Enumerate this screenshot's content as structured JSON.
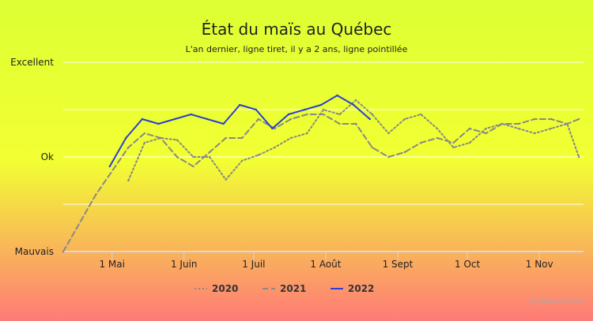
{
  "chart_data": {
    "type": "line",
    "title": "État du maïs au Québec",
    "subtitle": "L'an dernier, ligne tiret, il y a 2 ans, ligne pointillée",
    "y_ticks": [
      {
        "value": 0,
        "label": "Mauvais"
      },
      {
        "value": 1,
        "label": "Ok"
      },
      {
        "value": 2,
        "label": "Excellent"
      }
    ],
    "ylim": [
      0,
      2
    ],
    "x_range": [
      "2021-04-10",
      "2021-11-20"
    ],
    "x_ticks": [
      {
        "date": "2021-05-01",
        "label": "1 Mai"
      },
      {
        "date": "2021-06-01",
        "label": "1 Juin"
      },
      {
        "date": "2021-07-01",
        "label": "1 Juil"
      },
      {
        "date": "2021-08-01",
        "label": "1 Août"
      },
      {
        "date": "2021-09-01",
        "label": "1 Sept"
      },
      {
        "date": "2021-10-01",
        "label": "1 Oct"
      },
      {
        "date": "2021-11-01",
        "label": "1 Nov"
      }
    ],
    "grid": true,
    "legend_position": "bottom-center",
    "series": [
      {
        "name": "2020",
        "style": "dotted",
        "color": "#888888",
        "points": [
          [
            "2021-05-08",
            0.75
          ],
          [
            "2021-05-15",
            1.15
          ],
          [
            "2021-05-22",
            1.2
          ],
          [
            "2021-05-29",
            1.18
          ],
          [
            "2021-06-05",
            1.0
          ],
          [
            "2021-06-12",
            1.0
          ],
          [
            "2021-06-19",
            0.76
          ],
          [
            "2021-06-26",
            0.96
          ],
          [
            "2021-07-03",
            1.02
          ],
          [
            "2021-07-10",
            1.1
          ],
          [
            "2021-07-17",
            1.2
          ],
          [
            "2021-07-24",
            1.25
          ],
          [
            "2021-07-31",
            1.5
          ],
          [
            "2021-08-07",
            1.45
          ],
          [
            "2021-08-14",
            1.6
          ],
          [
            "2021-08-21",
            1.45
          ],
          [
            "2021-08-28",
            1.25
          ],
          [
            "2021-09-04",
            1.4
          ],
          [
            "2021-09-11",
            1.45
          ],
          [
            "2021-09-18",
            1.3
          ],
          [
            "2021-09-25",
            1.1
          ],
          [
            "2021-10-02",
            1.15
          ],
          [
            "2021-10-09",
            1.3
          ],
          [
            "2021-10-16",
            1.35
          ],
          [
            "2021-10-23",
            1.3
          ],
          [
            "2021-10-30",
            1.25
          ],
          [
            "2021-11-06",
            1.3
          ],
          [
            "2021-11-13",
            1.35
          ],
          [
            "2021-11-18",
            1.0
          ]
        ]
      },
      {
        "name": "2021",
        "style": "dashed",
        "color": "#888888",
        "points": [
          [
            "2021-04-10",
            0.0
          ],
          [
            "2021-04-24",
            0.6
          ],
          [
            "2021-05-08",
            1.1
          ],
          [
            "2021-05-15",
            1.25
          ],
          [
            "2021-05-22",
            1.2
          ],
          [
            "2021-05-29",
            1.0
          ],
          [
            "2021-06-05",
            0.9
          ],
          [
            "2021-06-12",
            1.05
          ],
          [
            "2021-06-19",
            1.2
          ],
          [
            "2021-06-26",
            1.2
          ],
          [
            "2021-07-03",
            1.4
          ],
          [
            "2021-07-10",
            1.3
          ],
          [
            "2021-07-17",
            1.4
          ],
          [
            "2021-07-24",
            1.45
          ],
          [
            "2021-07-31",
            1.45
          ],
          [
            "2021-08-07",
            1.35
          ],
          [
            "2021-08-14",
            1.35
          ],
          [
            "2021-08-21",
            1.1
          ],
          [
            "2021-08-28",
            1.0
          ],
          [
            "2021-09-04",
            1.05
          ],
          [
            "2021-09-11",
            1.15
          ],
          [
            "2021-09-18",
            1.2
          ],
          [
            "2021-09-25",
            1.15
          ],
          [
            "2021-10-02",
            1.3
          ],
          [
            "2021-10-09",
            1.25
          ],
          [
            "2021-10-16",
            1.35
          ],
          [
            "2021-10-23",
            1.35
          ],
          [
            "2021-10-30",
            1.4
          ],
          [
            "2021-11-06",
            1.4
          ],
          [
            "2021-11-13",
            1.35
          ],
          [
            "2021-11-18",
            1.4
          ]
        ]
      },
      {
        "name": "2022",
        "style": "solid",
        "color": "#2b3fd4",
        "points": [
          [
            "2021-04-30",
            0.9
          ],
          [
            "2021-05-07",
            1.2
          ],
          [
            "2021-05-14",
            1.4
          ],
          [
            "2021-05-21",
            1.35
          ],
          [
            "2021-05-28",
            1.4
          ],
          [
            "2021-06-04",
            1.45
          ],
          [
            "2021-06-11",
            1.4
          ],
          [
            "2021-06-18",
            1.35
          ],
          [
            "2021-06-25",
            1.55
          ],
          [
            "2021-07-02",
            1.5
          ],
          [
            "2021-07-09",
            1.3
          ],
          [
            "2021-07-16",
            1.45
          ],
          [
            "2021-07-23",
            1.5
          ],
          [
            "2021-07-30",
            1.55
          ],
          [
            "2021-08-06",
            1.65
          ],
          [
            "2021-08-13",
            1.55
          ],
          [
            "2021-08-20",
            1.4
          ]
        ]
      }
    ],
    "credits": "highcharts.com"
  },
  "colors": {
    "bg_top": "#ddff33",
    "bg_mid": "#f2ff33",
    "bg_bottom": "#ff7a78",
    "grid": "#ffffff",
    "axis": "#ccd6eb"
  }
}
